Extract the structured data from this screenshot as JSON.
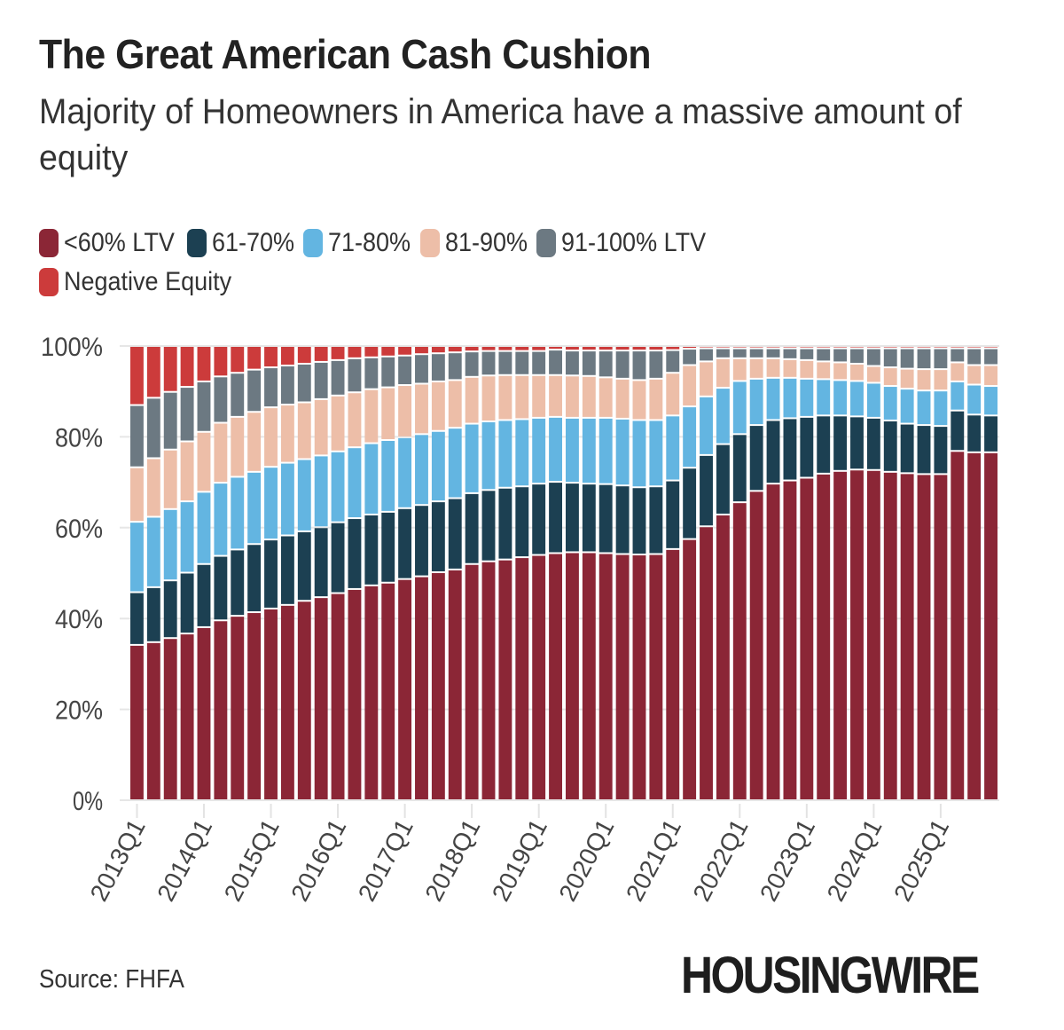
{
  "title": "The Great American Cash Cushion",
  "subtitle": "Majority of Homeowners in America have a massive amount of equity",
  "source": "Source: FHFA",
  "logo_text": "HOUSINGWIRE",
  "chart_data": {
    "type": "bar",
    "stacked": true,
    "title": "The Great American Cash Cushion",
    "subtitle": "Majority of Homeowners in America have a massive amount of equity",
    "xlabel": "",
    "ylabel": "",
    "ylim": [
      0,
      100
    ],
    "y_ticks": [
      "0%",
      "20%",
      "40%",
      "60%",
      "80%",
      "100%"
    ],
    "grid": true,
    "legend_position": "top-left",
    "categories": [
      "2013Q1",
      "2013Q2",
      "2013Q3",
      "2013Q4",
      "2014Q1",
      "2014Q2",
      "2014Q3",
      "2014Q4",
      "2015Q1",
      "2015Q2",
      "2015Q3",
      "2015Q4",
      "2016Q1",
      "2016Q2",
      "2016Q3",
      "2016Q4",
      "2017Q1",
      "2017Q2",
      "2017Q3",
      "2017Q4",
      "2018Q1",
      "2018Q2",
      "2018Q3",
      "2018Q4",
      "2019Q1",
      "2019Q2",
      "2019Q3",
      "2019Q4",
      "2020Q1",
      "2020Q2",
      "2020Q3",
      "2020Q4",
      "2021Q1",
      "2021Q2",
      "2021Q3",
      "2021Q4",
      "2022Q1",
      "2022Q2",
      "2022Q3",
      "2022Q4",
      "2023Q1",
      "2023Q2",
      "2023Q3",
      "2023Q4",
      "2024Q1",
      "2024Q2",
      "2024Q3",
      "2024Q4",
      "2025Q1",
      "2025Q2",
      "2025Q3",
      "2025Q4"
    ],
    "series": [
      {
        "name": "<60% LTV",
        "color": "#8b2636",
        "values": [
          34.2,
          34.8,
          35.7,
          36.7,
          38.1,
          39.6,
          40.6,
          41.4,
          42.2,
          43.0,
          43.9,
          44.7,
          45.6,
          46.5,
          47.3,
          47.9,
          48.7,
          49.3,
          50.2,
          50.8,
          52.0,
          52.6,
          53.0,
          53.5,
          54.0,
          54.4,
          54.6,
          54.6,
          54.4,
          54.2,
          54.1,
          54.2,
          55.3,
          57.5,
          60.3,
          62.9,
          65.6,
          68.1,
          69.7,
          70.4,
          71.0,
          71.9,
          72.5,
          72.8,
          72.7,
          72.3,
          72.0,
          71.8,
          71.8,
          76.9,
          76.6,
          76.6
        ]
      },
      {
        "name": "61-70%",
        "color": "#1c4052",
        "values": [
          11.6,
          12.1,
          12.7,
          13.4,
          13.9,
          14.2,
          14.6,
          15.0,
          15.2,
          15.3,
          15.3,
          15.4,
          15.6,
          15.6,
          15.6,
          15.6,
          15.6,
          15.7,
          15.6,
          15.7,
          15.6,
          15.7,
          15.8,
          15.6,
          15.7,
          15.7,
          15.3,
          15.1,
          15.2,
          15.1,
          14.8,
          14.9,
          15.1,
          15.7,
          15.7,
          15.5,
          15.0,
          14.5,
          14.0,
          13.7,
          13.4,
          12.8,
          12.2,
          11.7,
          11.5,
          11.3,
          10.9,
          10.8,
          10.6,
          8.9,
          8.3,
          8.1
        ]
      },
      {
        "name": "71-80%",
        "color": "#63b5e1",
        "values": [
          15.5,
          15.5,
          15.7,
          15.7,
          15.9,
          16.1,
          16.0,
          15.9,
          16.0,
          16.0,
          15.9,
          15.8,
          15.6,
          15.6,
          15.7,
          15.8,
          15.6,
          15.6,
          15.5,
          15.5,
          15.3,
          15.1,
          14.9,
          14.8,
          14.5,
          14.3,
          14.3,
          14.5,
          14.6,
          14.7,
          14.8,
          14.6,
          14.3,
          13.5,
          12.9,
          12.4,
          11.7,
          10.2,
          9.3,
          8.9,
          8.4,
          8.0,
          7.8,
          7.8,
          7.7,
          7.6,
          7.7,
          7.6,
          7.8,
          6.4,
          6.6,
          6.5
        ]
      },
      {
        "name": "81-90%",
        "color": "#edbea8",
        "values": [
          12.0,
          12.9,
          13.1,
          13.2,
          13.2,
          13.2,
          13.2,
          13.2,
          13.1,
          12.8,
          12.5,
          12.4,
          12.3,
          12.1,
          11.9,
          11.6,
          11.5,
          11.1,
          10.9,
          10.5,
          10.3,
          10.1,
          9.9,
          9.7,
          9.4,
          9.2,
          9.3,
          9.2,
          8.9,
          8.8,
          8.8,
          9.1,
          9.4,
          9.1,
          7.7,
          6.5,
          5.0,
          4.5,
          4.3,
          4.1,
          4.1,
          3.9,
          3.9,
          3.8,
          3.7,
          4.1,
          4.4,
          4.7,
          4.7,
          4.2,
          4.3,
          4.6
        ]
      },
      {
        "name": "91-100% LTV",
        "color": "#6c7982",
        "values": [
          13.7,
          13.3,
          12.7,
          12.0,
          11.1,
          10.2,
          9.7,
          9.3,
          8.8,
          8.6,
          8.5,
          8.2,
          7.8,
          7.5,
          7.0,
          6.8,
          6.5,
          6.5,
          6.2,
          6.1,
          5.6,
          5.4,
          5.3,
          5.3,
          5.3,
          5.6,
          5.5,
          5.6,
          5.9,
          6.2,
          6.5,
          6.2,
          5.0,
          3.6,
          2.9,
          2.2,
          2.2,
          2.2,
          2.2,
          2.4,
          2.6,
          2.9,
          3.1,
          3.4,
          3.9,
          4.2,
          4.5,
          4.6,
          4.6,
          3.1,
          3.7,
          3.7
        ]
      },
      {
        "name": "Negative Equity",
        "color": "#cc3b3b",
        "values": [
          13.0,
          11.4,
          10.1,
          9.0,
          7.8,
          6.7,
          5.9,
          5.2,
          4.7,
          4.3,
          3.9,
          3.5,
          3.1,
          2.7,
          2.5,
          2.3,
          2.1,
          1.8,
          1.6,
          1.4,
          1.2,
          1.1,
          1.1,
          1.1,
          1.1,
          0.8,
          1.0,
          1.0,
          1.0,
          1.0,
          1.0,
          1.0,
          0.9,
          0.6,
          0.5,
          0.5,
          0.5,
          0.5,
          0.5,
          0.5,
          0.5,
          0.5,
          0.5,
          0.5,
          0.5,
          0.5,
          0.5,
          0.5,
          0.5,
          0.5,
          0.5,
          0.5
        ]
      }
    ]
  }
}
